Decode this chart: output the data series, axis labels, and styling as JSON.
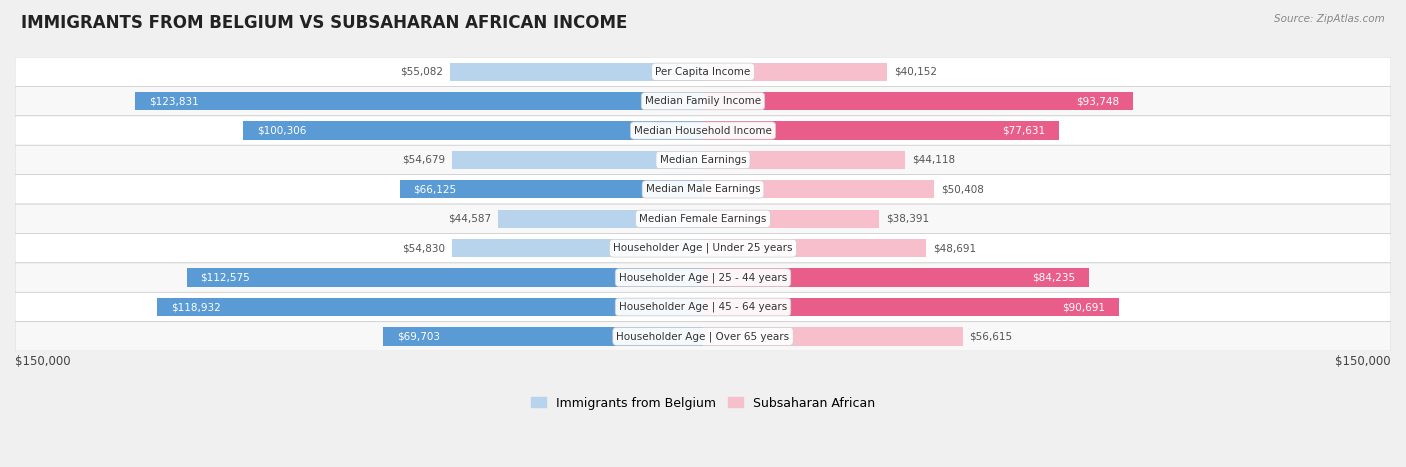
{
  "title": "IMMIGRANTS FROM BELGIUM VS SUBSAHARAN AFRICAN INCOME",
  "source": "Source: ZipAtlas.com",
  "categories": [
    "Per Capita Income",
    "Median Family Income",
    "Median Household Income",
    "Median Earnings",
    "Median Male Earnings",
    "Median Female Earnings",
    "Householder Age | Under 25 years",
    "Householder Age | 25 - 44 years",
    "Householder Age | 45 - 64 years",
    "Householder Age | Over 65 years"
  ],
  "belgium_values": [
    55082,
    123831,
    100306,
    54679,
    66125,
    44587,
    54830,
    112575,
    118932,
    69703
  ],
  "subsaharan_values": [
    40152,
    93748,
    77631,
    44118,
    50408,
    38391,
    48691,
    84235,
    90691,
    56615
  ],
  "belgium_labels": [
    "$55,082",
    "$123,831",
    "$100,306",
    "$54,679",
    "$66,125",
    "$44,587",
    "$54,830",
    "$112,575",
    "$118,932",
    "$69,703"
  ],
  "subsaharan_labels": [
    "$40,152",
    "$93,748",
    "$77,631",
    "$44,118",
    "$50,408",
    "$38,391",
    "$48,691",
    "$84,235",
    "$90,691",
    "$56,615"
  ],
  "belgium_color_light": "#b8d4ec",
  "belgium_color_dark": "#5b9bd5",
  "subsaharan_color_light": "#f7bfcc",
  "subsaharan_color_dark": "#e85d8a",
  "inside_threshold": 60000,
  "max_value": 150000,
  "bar_height": 0.62,
  "background_color": "#f0f0f0",
  "row_bg_odd": "#f8f8f8",
  "row_bg_even": "#ffffff",
  "legend_belgium": "Immigrants from Belgium",
  "legend_subsaharan": "Subsaharan African",
  "xlabel_left": "$150,000",
  "xlabel_right": "$150,000",
  "label_outside_color": "#555555",
  "label_inside_color": "#ffffff"
}
